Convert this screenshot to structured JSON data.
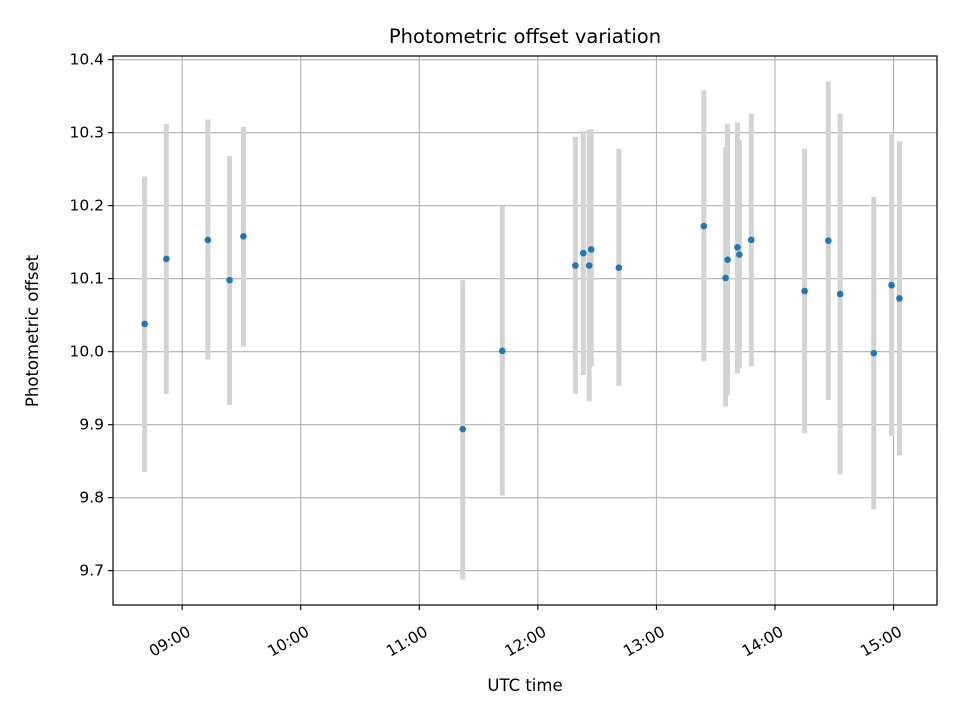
{
  "chart_data": {
    "type": "scatter",
    "title": "Photometric offset variation",
    "xlabel": "UTC time",
    "ylabel": "Photometric offset",
    "x_unit": "UTC hh:mm",
    "xlim": [
      "08:25",
      "15:22"
    ],
    "ylim": [
      9.653,
      10.405
    ],
    "x_ticks": [
      "09:00",
      "10:00",
      "11:00",
      "12:00",
      "13:00",
      "14:00",
      "15:00"
    ],
    "y_ticks": [
      9.7,
      9.8,
      9.9,
      10.0,
      10.1,
      10.2,
      10.3,
      10.4
    ],
    "y_tick_labels": [
      "9.7",
      "9.8",
      "9.9",
      "10.0",
      "10.1",
      "10.2",
      "10.3",
      "10.4"
    ],
    "grid": true,
    "marker_color": "#1f77b4",
    "errorbar_color": "#d3d3d3",
    "points": [
      {
        "x": "08:41",
        "y": 10.038,
        "yerr_low": 9.835,
        "yerr_high": 10.24
      },
      {
        "x": "08:52",
        "y": 10.127,
        "yerr_low": 9.942,
        "yerr_high": 10.312
      },
      {
        "x": "09:13",
        "y": 10.153,
        "yerr_low": 9.989,
        "yerr_high": 10.318
      },
      {
        "x": "09:24",
        "y": 10.098,
        "yerr_low": 9.927,
        "yerr_high": 10.268
      },
      {
        "x": "09:31",
        "y": 10.158,
        "yerr_low": 10.007,
        "yerr_high": 10.308
      },
      {
        "x": "11:22",
        "y": 9.894,
        "yerr_low": 9.688,
        "yerr_high": 10.098
      },
      {
        "x": "11:42",
        "y": 10.001,
        "yerr_low": 9.803,
        "yerr_high": 10.199
      },
      {
        "x": "12:19",
        "y": 10.118,
        "yerr_low": 9.942,
        "yerr_high": 10.294
      },
      {
        "x": "12:23",
        "y": 10.135,
        "yerr_low": 9.968,
        "yerr_high": 10.302
      },
      {
        "x": "12:26",
        "y": 10.118,
        "yerr_low": 9.932,
        "yerr_high": 10.304
      },
      {
        "x": "12:27",
        "y": 10.14,
        "yerr_low": 9.98,
        "yerr_high": 10.305
      },
      {
        "x": "12:41",
        "y": 10.115,
        "yerr_low": 9.953,
        "yerr_high": 10.278
      },
      {
        "x": "13:24",
        "y": 10.172,
        "yerr_low": 9.987,
        "yerr_high": 10.358
      },
      {
        "x": "13:35",
        "y": 10.101,
        "yerr_low": 9.925,
        "yerr_high": 10.28
      },
      {
        "x": "13:36",
        "y": 10.126,
        "yerr_low": 9.94,
        "yerr_high": 10.312
      },
      {
        "x": "13:41",
        "y": 10.143,
        "yerr_low": 9.97,
        "yerr_high": 10.314
      },
      {
        "x": "13:42",
        "y": 10.133,
        "yerr_low": 9.978,
        "yerr_high": 10.29
      },
      {
        "x": "13:48",
        "y": 10.153,
        "yerr_low": 9.98,
        "yerr_high": 10.326
      },
      {
        "x": "14:15",
        "y": 10.083,
        "yerr_low": 9.888,
        "yerr_high": 10.278
      },
      {
        "x": "14:27",
        "y": 10.152,
        "yerr_low": 9.934,
        "yerr_high": 10.37
      },
      {
        "x": "14:33",
        "y": 10.079,
        "yerr_low": 9.832,
        "yerr_high": 10.326
      },
      {
        "x": "14:50",
        "y": 9.998,
        "yerr_low": 9.784,
        "yerr_high": 10.212
      },
      {
        "x": "14:59",
        "y": 10.091,
        "yerr_low": 9.885,
        "yerr_high": 10.298
      },
      {
        "x": "15:03",
        "y": 10.073,
        "yerr_low": 9.858,
        "yerr_high": 10.288
      }
    ]
  }
}
